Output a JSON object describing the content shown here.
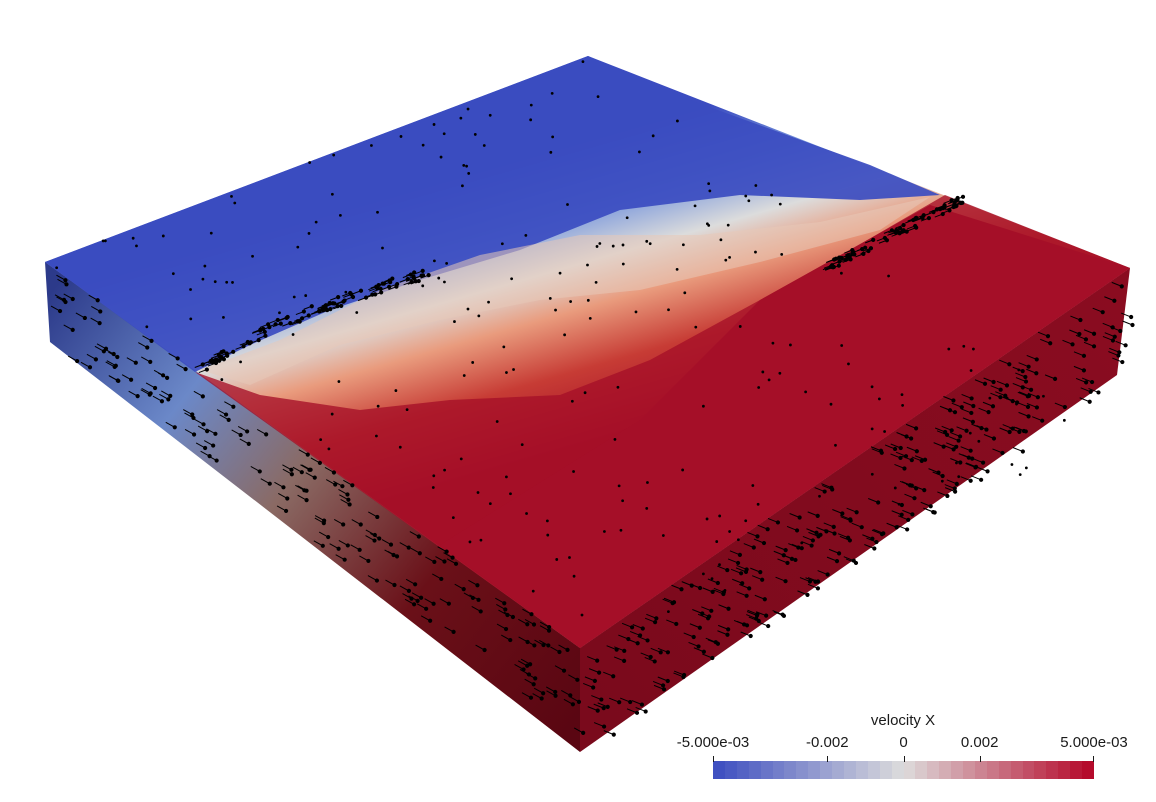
{
  "legend": {
    "title": "velocity X",
    "ticks": [
      {
        "label": "-5.000e-03",
        "value": -0.005
      },
      {
        "label": "-0.002",
        "value": -0.002
      },
      {
        "label": "0",
        "value": 0
      },
      {
        "label": "0.002",
        "value": 0.002
      },
      {
        "label": "5.000e-03",
        "value": 0.005
      }
    ],
    "range": [
      -0.005,
      0.005
    ],
    "colormap": {
      "name": "coolwarm",
      "low": "#3b4cc0",
      "mid": "#dddcdc",
      "high": "#b40426",
      "bands": 32
    }
  },
  "colors": {
    "negative_region": "#3b4cc0",
    "positive_region": "#a50f28",
    "vectors": "#000000",
    "background": "#ffffff"
  }
}
